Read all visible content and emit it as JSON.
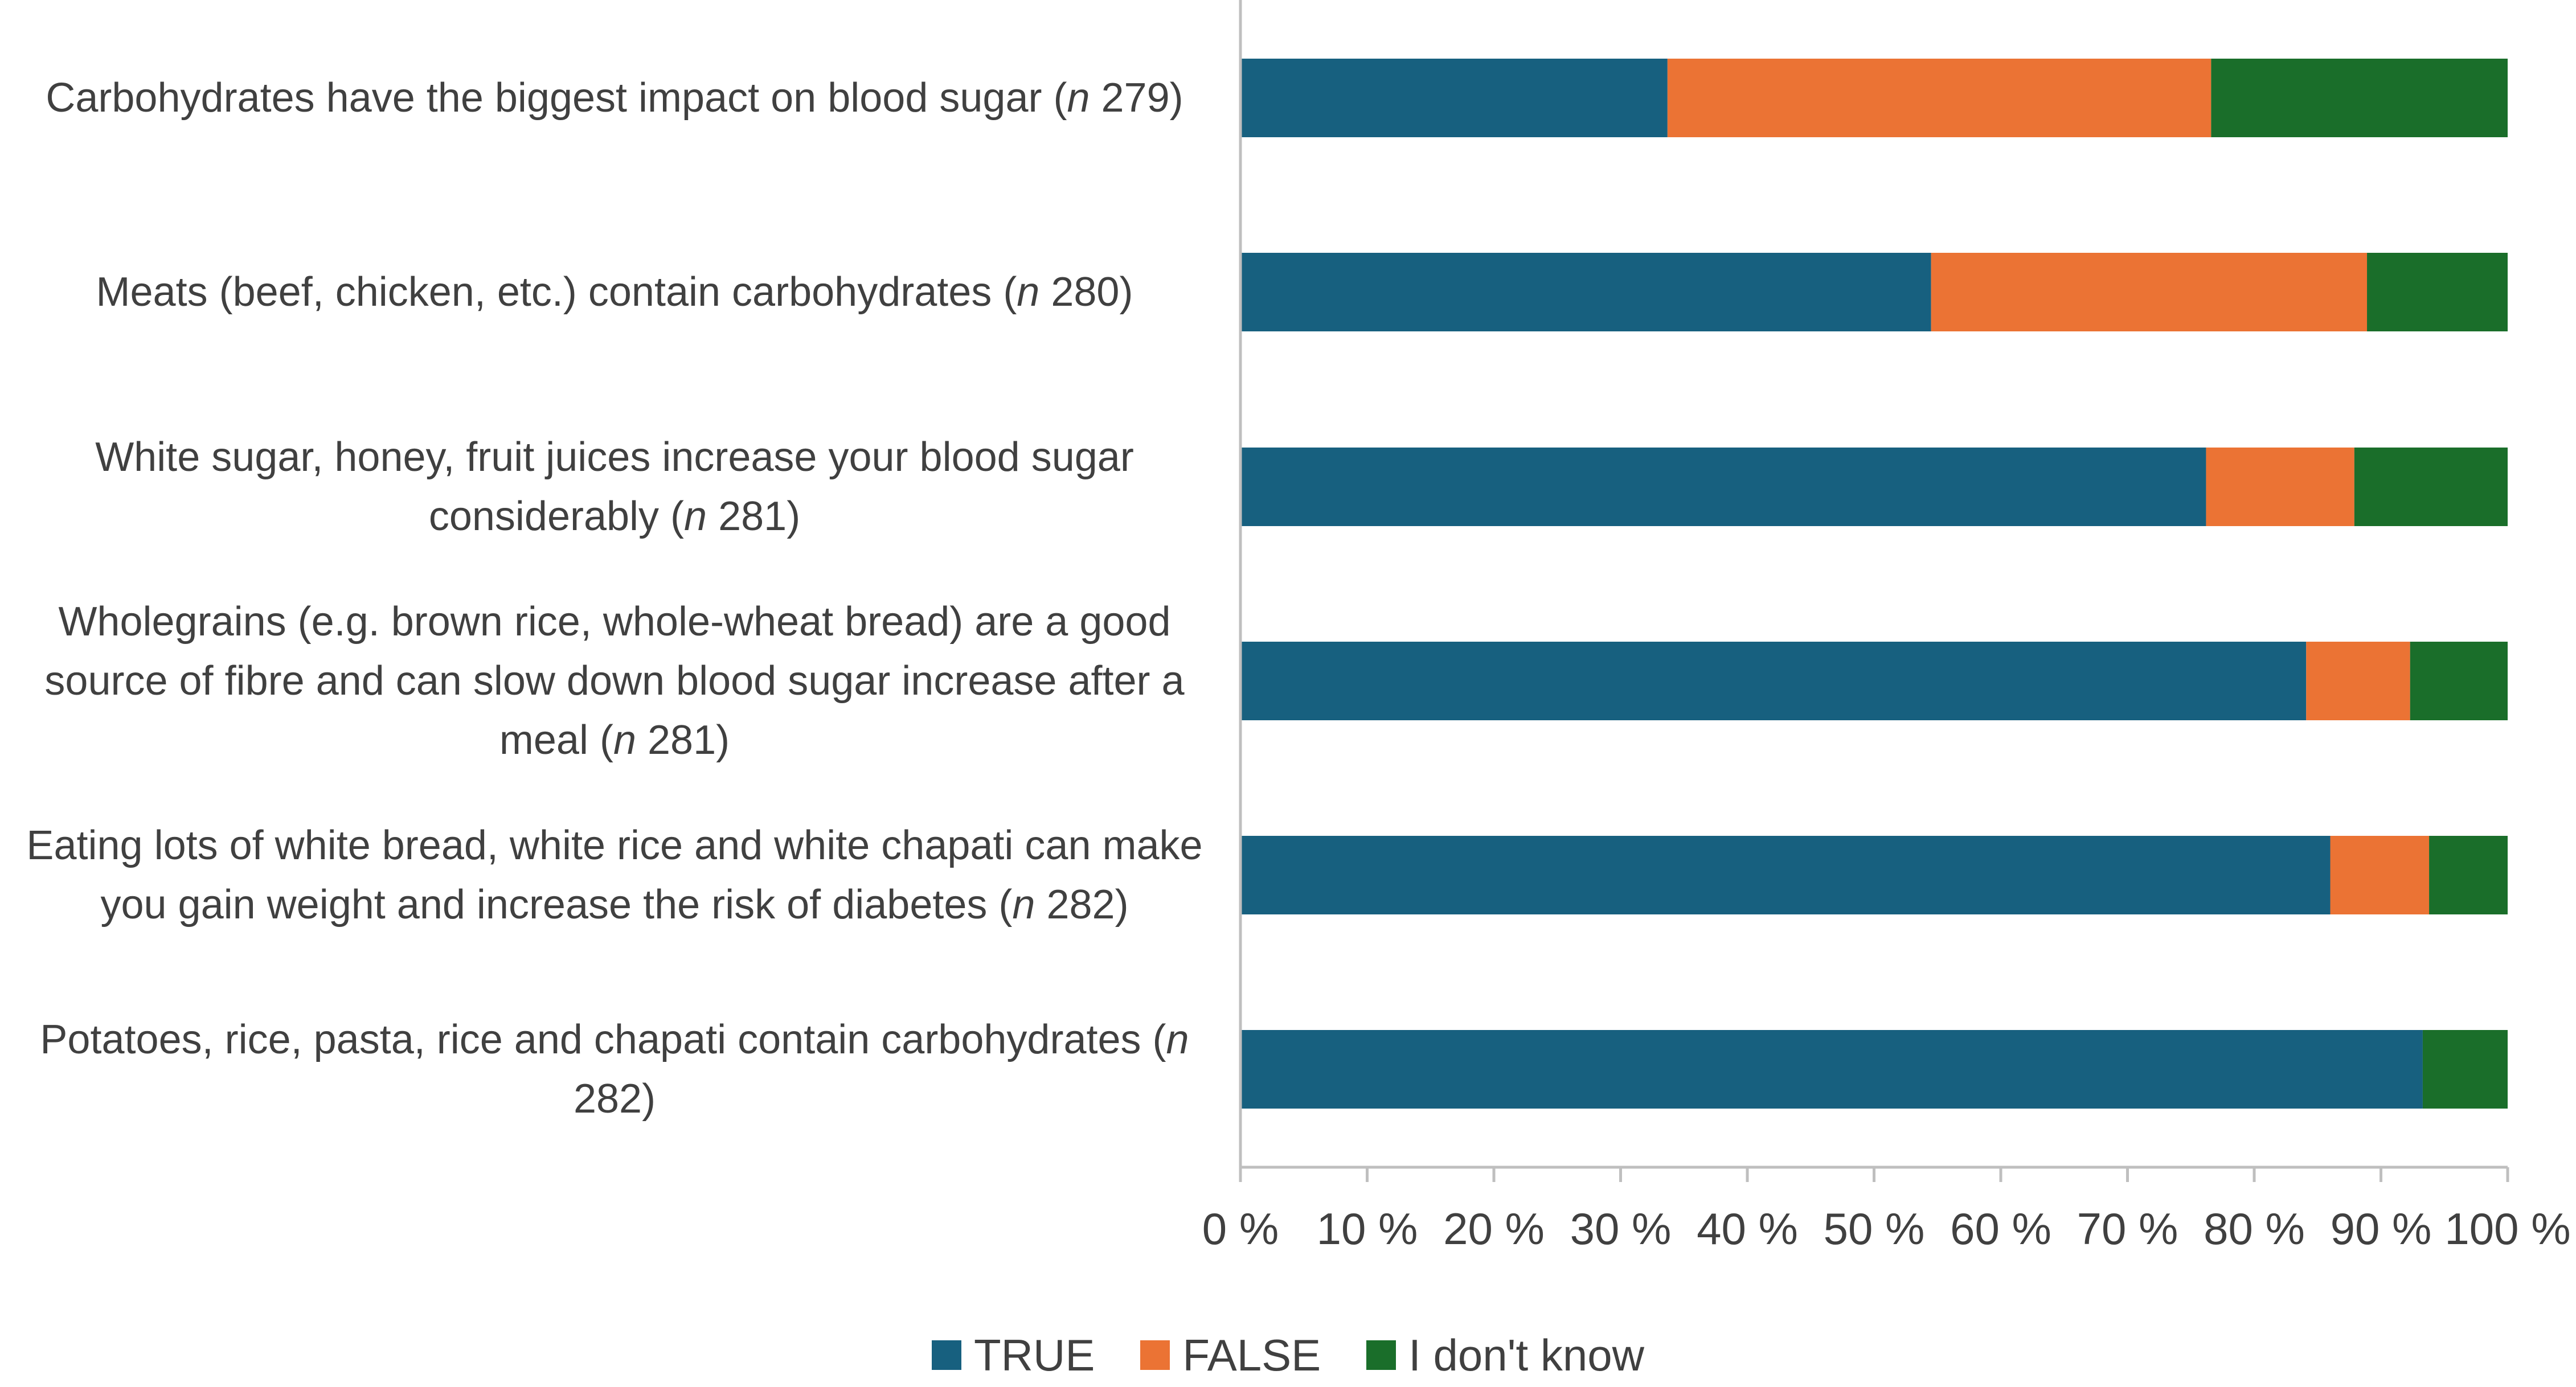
{
  "chart_data": {
    "type": "bar",
    "orientation": "horizontal",
    "stacked": "percent",
    "categories": [
      {
        "text": "Carbohydrates have the biggest impact on blood sugar",
        "n_text": "279"
      },
      {
        "text": "Meats (beef, chicken, etc.) contain carbohydrates",
        "n_text": "280"
      },
      {
        "text": "White sugar, honey, fruit juices increase your blood sugar considerably",
        "n_text": "281"
      },
      {
        "text": "Wholegrains (e.g. brown rice, whole-wheat bread) are a good source of fibre and can slow down blood sugar increase after a meal",
        "n_text": "281"
      },
      {
        "text": "Eating lots of white bread, white rice and white chapati can make you gain weight and increase the risk of diabetes",
        "n_text": "282"
      },
      {
        "text": "Potatoes, rice, pasta, rice and chapati contain carbohydrates",
        "n_text": "282"
      }
    ],
    "n_symbol": "n",
    "series": [
      {
        "name": "TRUE",
        "color": "#17607f",
        "values": [
          33.7,
          54.5,
          76.2,
          84.1,
          86.0,
          93.3
        ]
      },
      {
        "name": "FALSE",
        "color": "#eb7334",
        "values": [
          42.9,
          34.4,
          11.7,
          8.2,
          7.8,
          0.0
        ]
      },
      {
        "name": "I don't know",
        "color": "#1a6e2a",
        "values": [
          23.4,
          11.1,
          12.1,
          7.7,
          6.2,
          6.7
        ]
      }
    ],
    "xlim": [
      0,
      100
    ],
    "x_ticks": [
      "0 %",
      "10 %",
      "20 %",
      "30 %",
      "40 %",
      "50 %",
      "60 %",
      "70 %",
      "80 %",
      "90 %",
      "100 %"
    ],
    "grid": false,
    "legend_position": "bottom"
  }
}
